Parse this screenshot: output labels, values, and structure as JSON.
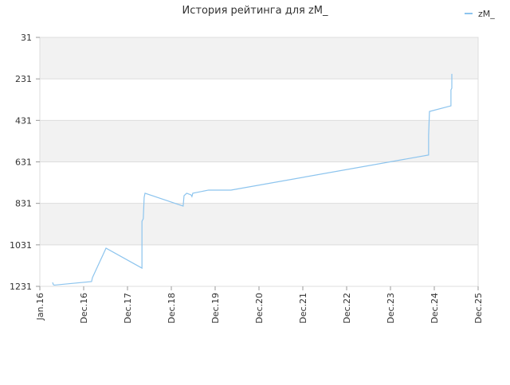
{
  "chart_data": {
    "type": "line",
    "title": "История рейтинга для zM_",
    "series": [
      {
        "name": "zM_",
        "color": "#8cc4ee",
        "x": [
          0.29,
          0.31,
          0.33,
          1.18,
          1.2,
          1.51,
          2.33,
          2.33,
          2.36,
          2.38,
          2.4,
          3.27,
          3.29,
          3.35,
          3.45,
          3.47,
          3.49,
          3.85,
          4.36,
          8.87,
          8.87,
          8.89,
          9.38,
          9.38,
          9.4,
          9.4
        ],
        "values": [
          1212,
          1223,
          1225,
          1208,
          1189,
          1047,
          1143,
          917,
          905,
          802,
          782,
          844,
          794,
          782,
          790,
          798,
          782,
          767,
          767,
          598,
          503,
          388,
          361,
          284,
          276,
          207
        ]
      }
    ],
    "xlim": [
      0,
      10
    ],
    "xticks": [
      {
        "value": 0,
        "label": "Jan.16"
      },
      {
        "value": 1,
        "label": "Dec.16"
      },
      {
        "value": 2,
        "label": "Dec.17"
      },
      {
        "value": 3,
        "label": "Dec.18"
      },
      {
        "value": 4,
        "label": "Dec.19"
      },
      {
        "value": 5,
        "label": "Dec.20"
      },
      {
        "value": 6,
        "label": "Dec.21"
      },
      {
        "value": 7,
        "label": "Dec.22"
      },
      {
        "value": 8,
        "label": "Dec.23"
      },
      {
        "value": 9,
        "label": "Dec.24"
      },
      {
        "value": 10,
        "label": "Dec.25"
      }
    ],
    "ylim": [
      1231,
      31
    ],
    "yticks": [
      31,
      231,
      431,
      631,
      831,
      1031,
      1231
    ],
    "grid": true,
    "legend": "top-right"
  }
}
